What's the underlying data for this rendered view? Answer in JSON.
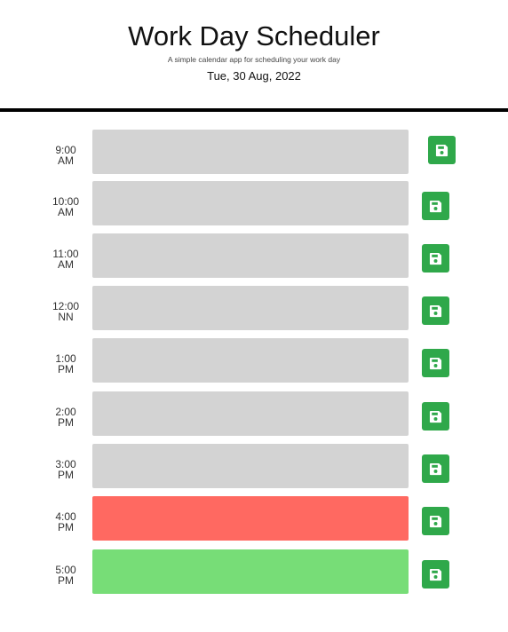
{
  "header": {
    "title": "Work Day Scheduler",
    "subtitle": "A simple calendar app for scheduling your work day",
    "current_date": "Tue, 30 Aug, 2022"
  },
  "time_blocks": [
    {
      "hour": "9:00",
      "period": "AM",
      "status": "past",
      "event_text": ""
    },
    {
      "hour": "10:00",
      "period": "AM",
      "status": "past",
      "event_text": ""
    },
    {
      "hour": "11:00",
      "period": "AM",
      "status": "past",
      "event_text": ""
    },
    {
      "hour": "12:00",
      "period": "NN",
      "status": "past",
      "event_text": ""
    },
    {
      "hour": "1:00",
      "period": "PM",
      "status": "past",
      "event_text": ""
    },
    {
      "hour": "2:00",
      "period": "PM",
      "status": "past",
      "event_text": ""
    },
    {
      "hour": "3:00",
      "period": "PM",
      "status": "past",
      "event_text": ""
    },
    {
      "hour": "4:00",
      "period": "PM",
      "status": "present",
      "event_text": ""
    },
    {
      "hour": "5:00",
      "period": "PM",
      "status": "future",
      "event_text": ""
    }
  ],
  "colors": {
    "past": "#d3d3d3",
    "present": "#ff6961",
    "future": "#77dd77",
    "save_button": "#2fa84a"
  },
  "icons": {
    "save": "floppy-disk-icon"
  }
}
